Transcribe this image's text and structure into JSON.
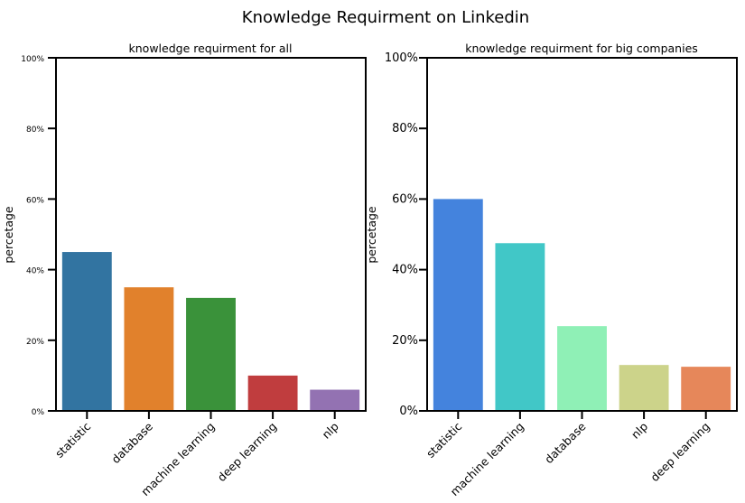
{
  "figure_title": "Knowledge Requirment on Linkedin",
  "chart_data": [
    {
      "type": "bar",
      "title": "knowledge requirment for all",
      "xlabel": "",
      "ylabel": "percetage",
      "categories": [
        "statistic",
        "database",
        "machine learning",
        "deep learning",
        "nlp"
      ],
      "values": [
        0.45,
        0.35,
        0.32,
        0.1,
        0.06
      ],
      "colors": [
        "#3274a1",
        "#e1812c",
        "#3a923a",
        "#c03d3e",
        "#9372b2"
      ],
      "ylim": [
        0,
        1
      ],
      "yticks": [
        "0%",
        "20%",
        "40%",
        "60%",
        "80%",
        "100%"
      ],
      "grid": false,
      "legend": false
    },
    {
      "type": "bar",
      "title": "knowledge requirment for big companies",
      "xlabel": "",
      "ylabel": "percetage",
      "categories": [
        "statistic",
        "machine learning",
        "database",
        "nlp",
        "deep learning"
      ],
      "values": [
        0.6,
        0.475,
        0.24,
        0.13,
        0.125
      ],
      "colors": [
        "#4483dd",
        "#41c7c7",
        "#8ff0b6",
        "#ccd38a",
        "#e6875a"
      ],
      "ylim": [
        0,
        1
      ],
      "yticks": [
        "0%",
        "20%",
        "40%",
        "60%",
        "80%",
        "100%"
      ],
      "grid": false,
      "legend": false
    }
  ]
}
